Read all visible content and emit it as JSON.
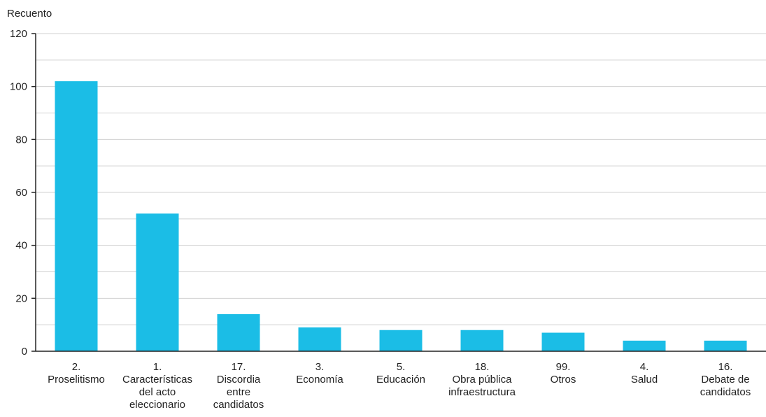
{
  "chart_data": {
    "type": "bar",
    "ylabel": "Recuento",
    "ylim": [
      0,
      120
    ],
    "yticks": [
      0,
      20,
      40,
      60,
      80,
      100,
      120
    ],
    "grid": true,
    "bar_color": "#1bbde6",
    "categories": [
      [
        "2.",
        "Proselitismo"
      ],
      [
        "1.",
        "Características",
        "del acto",
        "eleccionario"
      ],
      [
        "17.",
        "Discordia",
        "entre",
        "candidatos"
      ],
      [
        "3.",
        "Economía"
      ],
      [
        "5.",
        "Educación"
      ],
      [
        "18.",
        "Obra pública",
        "infraestructura"
      ],
      [
        "99.",
        "Otros"
      ],
      [
        "4.",
        "Salud"
      ],
      [
        "16.",
        "Debate de",
        "candidatos"
      ]
    ],
    "values": [
      102,
      52,
      14,
      9,
      8,
      8,
      7,
      4,
      4
    ]
  }
}
